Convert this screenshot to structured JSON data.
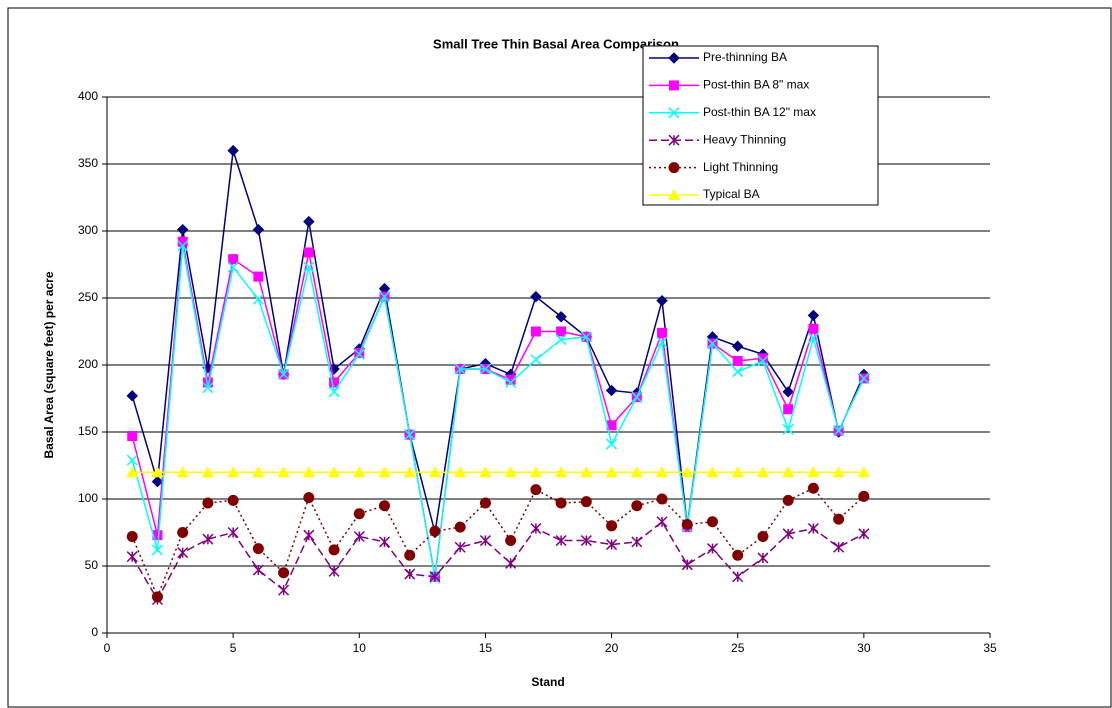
{
  "chart_data": {
    "type": "line",
    "title": "Small Tree Thin Basal Area Comparison",
    "xlabel": "Stand",
    "ylabel": "Basal Area (square feet) per acre",
    "x": [
      1,
      2,
      3,
      4,
      5,
      6,
      7,
      8,
      9,
      10,
      11,
      12,
      13,
      14,
      15,
      16,
      17,
      18,
      19,
      20,
      21,
      22,
      23,
      24,
      25,
      26,
      27,
      28,
      29,
      30
    ],
    "xlim": [
      0,
      35
    ],
    "xticks": [
      0,
      5,
      10,
      15,
      20,
      25,
      30,
      35
    ],
    "ylim": [
      0,
      400
    ],
    "yticks": [
      0,
      50,
      100,
      150,
      200,
      250,
      300,
      350,
      400
    ],
    "grid": true,
    "legend": "upper right",
    "series": [
      {
        "name": "Pre-thinning BA",
        "color": "#000080",
        "marker": "diamond",
        "dash": "solid",
        "values": [
          177,
          113,
          301,
          198,
          360,
          301,
          193,
          307,
          197,
          212,
          257,
          148,
          75,
          197,
          201,
          193,
          251,
          236,
          221,
          181,
          179,
          248,
          80,
          221,
          214,
          208,
          180,
          237,
          150,
          193
        ]
      },
      {
        "name": "Post-thin BA 8\" max",
        "color": "#ff00ff",
        "marker": "square",
        "dash": "solid",
        "values": [
          147,
          73,
          292,
          187,
          279,
          266,
          193,
          284,
          187,
          209,
          251,
          148,
          42,
          197,
          197,
          189,
          225,
          225,
          221,
          155,
          176,
          224,
          79,
          216,
          203,
          205,
          167,
          227,
          151,
          190
        ]
      },
      {
        "name": "Post-thin BA 12\" max",
        "color": "#00ffff",
        "marker": "x",
        "dash": "solid",
        "values": [
          129,
          62,
          289,
          183,
          273,
          249,
          193,
          273,
          180,
          208,
          251,
          148,
          41,
          197,
          197,
          187,
          204,
          219,
          221,
          141,
          176,
          217,
          79,
          216,
          195,
          203,
          152,
          220,
          151,
          190
        ]
      },
      {
        "name": "Heavy Thinning",
        "color": "#800080",
        "marker": "asterisk",
        "dash": "dashed",
        "values": [
          57,
          25,
          60,
          70,
          75,
          47,
          32,
          73,
          46,
          72,
          68,
          44,
          42,
          64,
          69,
          52,
          78,
          69,
          69,
          66,
          68,
          83,
          51,
          63,
          42,
          56,
          74,
          78,
          64,
          74
        ]
      },
      {
        "name": "Light Thinning",
        "color": "#800000",
        "marker": "circle",
        "dash": "dotted",
        "values": [
          72,
          27,
          75,
          97,
          99,
          63,
          45,
          101,
          62,
          89,
          95,
          58,
          76,
          79,
          97,
          69,
          107,
          97,
          98,
          80,
          95,
          100,
          81,
          83,
          58,
          72,
          99,
          108,
          85,
          102
        ]
      },
      {
        "name": "Typical BA",
        "color": "#ffff00",
        "marker": "triangle",
        "dash": "solid",
        "values": [
          120,
          120,
          120,
          120,
          120,
          120,
          120,
          120,
          120,
          120,
          120,
          120,
          120,
          120,
          120,
          120,
          120,
          120,
          120,
          120,
          120,
          120,
          120,
          120,
          120,
          120,
          120,
          120,
          120,
          120
        ]
      }
    ]
  }
}
